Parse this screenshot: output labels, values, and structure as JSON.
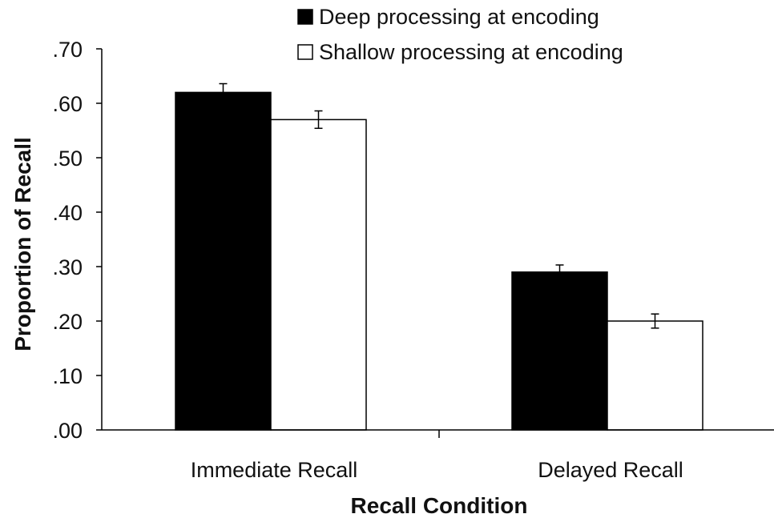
{
  "chart_data": {
    "type": "bar",
    "title": "",
    "xlabel": "Recall Condition",
    "ylabel": "Proportion of Recall",
    "categories": [
      "Immediate Recall",
      "Delayed Recall"
    ],
    "series": [
      {
        "name": "Deep processing at encoding",
        "values": [
          0.62,
          0.29
        ],
        "errors": [
          0.016,
          0.013
        ],
        "color": "#000000"
      },
      {
        "name": "Shallow processing at encoding",
        "values": [
          0.57,
          0.2
        ],
        "errors": [
          0.016,
          0.013
        ],
        "color": "#ffffff"
      }
    ],
    "ylim": [
      0,
      0.7
    ],
    "yticks": [
      0,
      0.1,
      0.2,
      0.3,
      0.4,
      0.5,
      0.6,
      0.7
    ],
    "ytick_labels": [
      ".00",
      ".10",
      ".20",
      ".30",
      ".40",
      ".50",
      ".60",
      ".70"
    ],
    "grid": false,
    "legend_position": "top-right"
  }
}
